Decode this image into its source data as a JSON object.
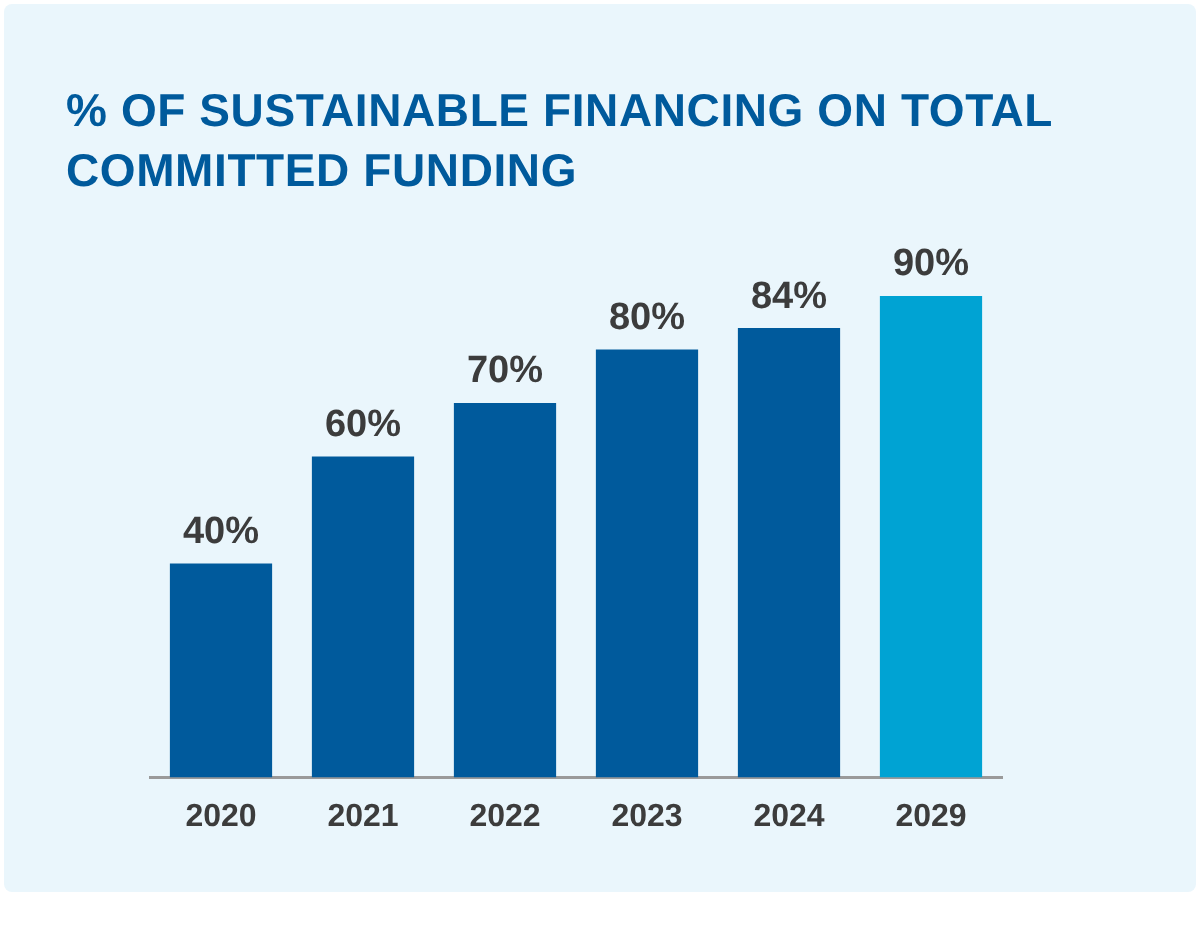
{
  "chart_data": {
    "type": "bar",
    "title": "% OF SUSTAINABLE FINANCING ON TOTAL COMMITTED FUNDING",
    "categories": [
      "2020",
      "2021",
      "2022",
      "2023",
      "2024",
      "2029"
    ],
    "values": [
      40,
      60,
      70,
      80,
      84,
      90
    ],
    "colors": [
      "#005a9c",
      "#005a9c",
      "#005a9c",
      "#005a9c",
      "#005a9c",
      "#00a3d3"
    ],
    "value_labels": [
      "40%",
      "60%",
      "70%",
      "80%",
      "84%",
      "90%"
    ],
    "grid": false,
    "legend": false
  }
}
